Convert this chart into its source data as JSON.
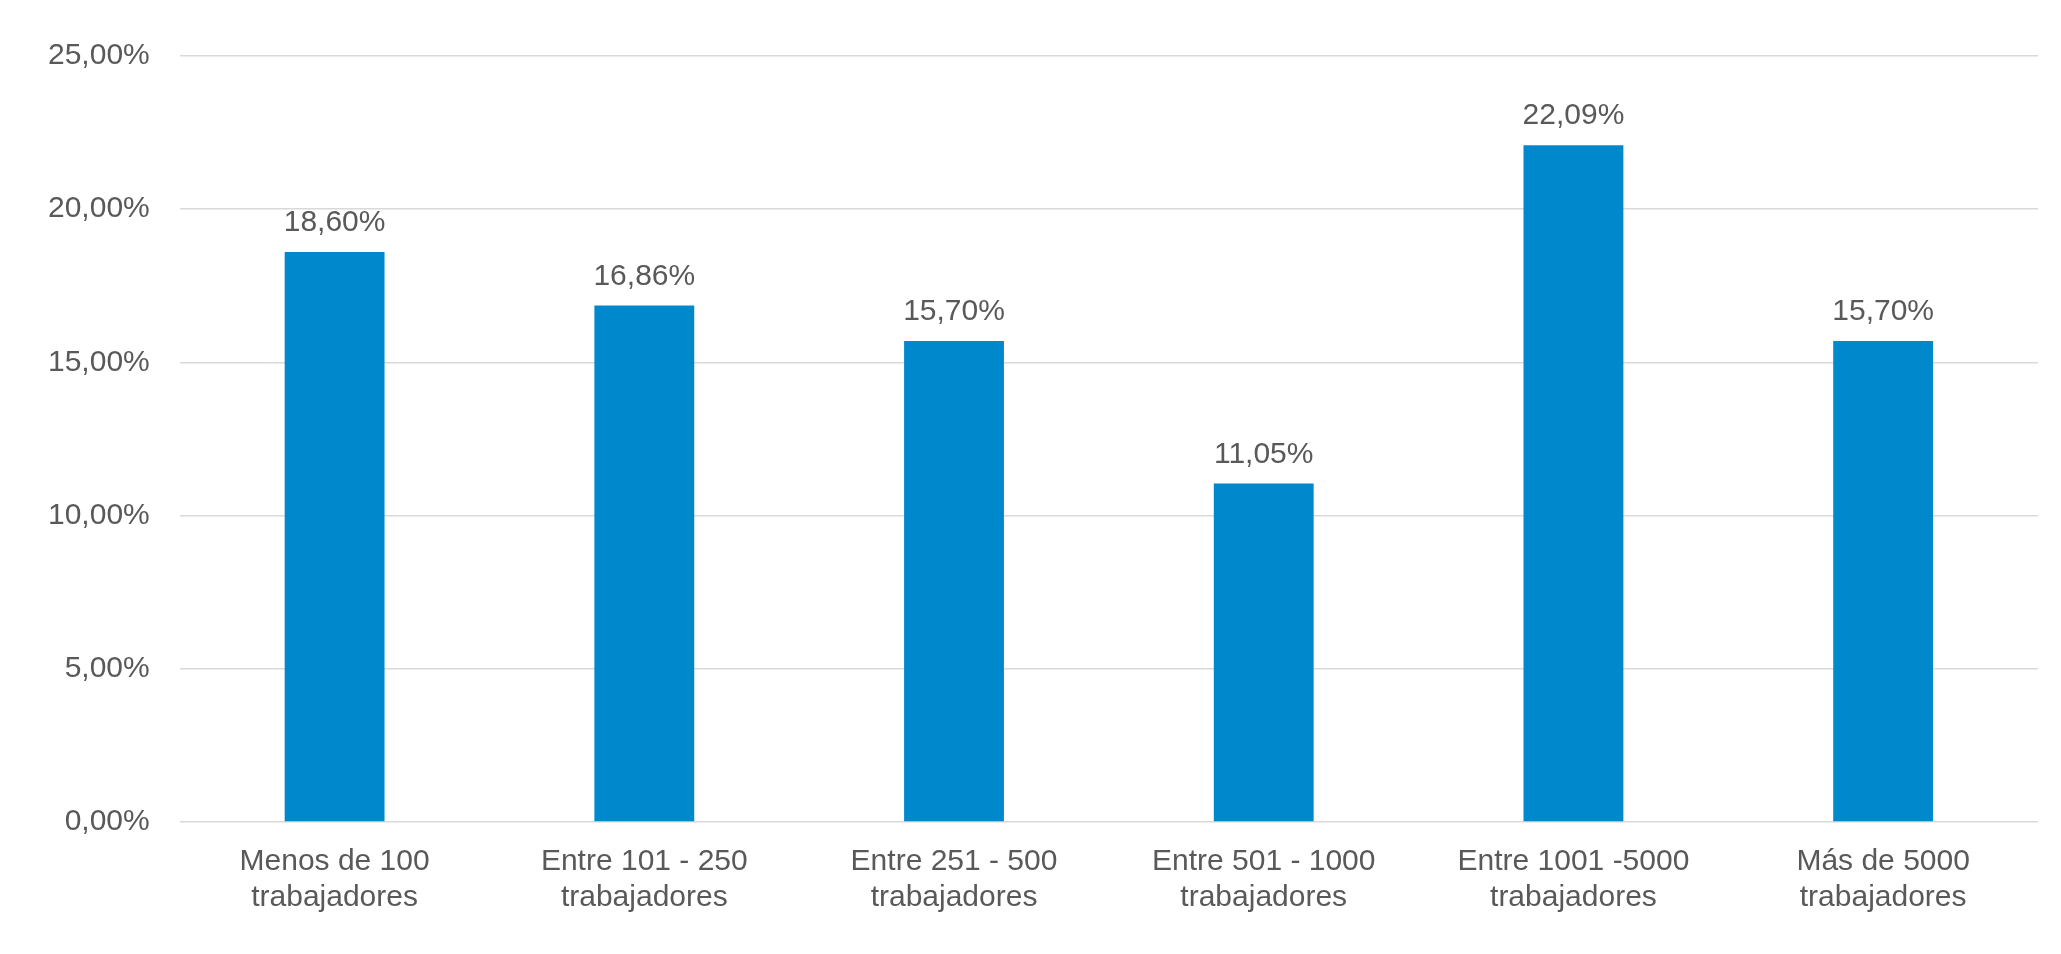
{
  "chart_data": {
    "type": "bar",
    "categories": [
      "Menos de 100 trabajadores",
      "Entre 101 - 250 trabajadores",
      "Entre 251 - 500 trabajadores",
      "Entre 501 - 1000 trabajadores",
      "Entre 1001 -5000 trabajadores",
      "Más de 5000 trabajadores"
    ],
    "values": [
      18.6,
      16.86,
      15.7,
      11.05,
      22.09,
      15.7
    ],
    "value_labels": [
      "18,60%",
      "16,86%",
      "15,70%",
      "11,05%",
      "22,09%",
      "15,70%"
    ],
    "color": "#0088cc",
    "ylim": [
      0,
      25
    ],
    "yticks": [
      {
        "value": 0,
        "label": "0,00%"
      },
      {
        "value": 5,
        "label": "5,00%"
      },
      {
        "value": 10,
        "label": "10,00%"
      },
      {
        "value": 15,
        "label": "15,00%"
      },
      {
        "value": 20,
        "label": "20,00%"
      },
      {
        "value": 25,
        "label": "25,00%"
      }
    ],
    "grid": "y",
    "legend": false
  }
}
